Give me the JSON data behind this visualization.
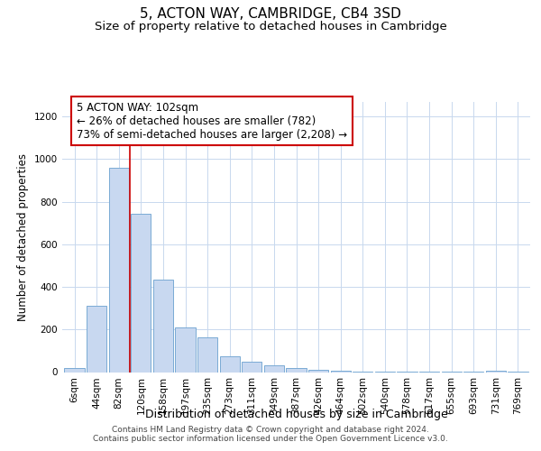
{
  "title": "5, ACTON WAY, CAMBRIDGE, CB4 3SD",
  "subtitle": "Size of property relative to detached houses in Cambridge",
  "xlabel": "Distribution of detached houses by size in Cambridge",
  "ylabel": "Number of detached properties",
  "bar_labels": [
    "6sqm",
    "44sqm",
    "82sqm",
    "120sqm",
    "158sqm",
    "197sqm",
    "235sqm",
    "273sqm",
    "311sqm",
    "349sqm",
    "387sqm",
    "426sqm",
    "464sqm",
    "502sqm",
    "540sqm",
    "578sqm",
    "617sqm",
    "655sqm",
    "693sqm",
    "731sqm",
    "769sqm"
  ],
  "bar_values": [
    20,
    310,
    960,
    745,
    435,
    210,
    165,
    75,
    48,
    33,
    18,
    10,
    5,
    2,
    2,
    2,
    2,
    2,
    2,
    8,
    2
  ],
  "bar_color": "#c8d8f0",
  "bar_edge_color": "#7aaad4",
  "vline_x": 2.5,
  "vline_color": "#cc0000",
  "annotation_text": "5 ACTON WAY: 102sqm\n← 26% of detached houses are smaller (782)\n73% of semi-detached houses are larger (2,208) →",
  "annotation_box_color": "#ffffff",
  "annotation_box_edge": "#cc0000",
  "ylim": [
    0,
    1270
  ],
  "yticks": [
    0,
    200,
    400,
    600,
    800,
    1000,
    1200
  ],
  "footer1": "Contains HM Land Registry data © Crown copyright and database right 2024.",
  "footer2": "Contains public sector information licensed under the Open Government Licence v3.0.",
  "title_fontsize": 11,
  "subtitle_fontsize": 9.5,
  "xlabel_fontsize": 9,
  "ylabel_fontsize": 8.5,
  "tick_fontsize": 7.5,
  "annotation_fontsize": 8.5,
  "footer_fontsize": 6.5,
  "grid_color": "#c8d8ee"
}
